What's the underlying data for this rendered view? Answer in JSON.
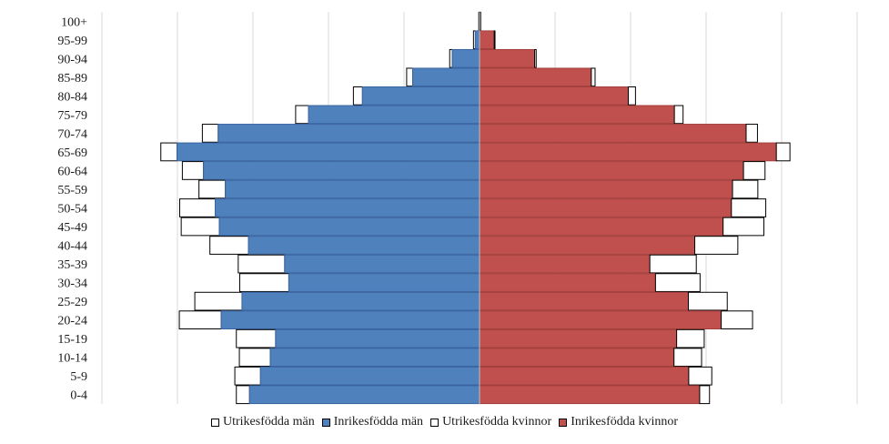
{
  "chart_data": {
    "type": "bar",
    "orientation": "horizontal",
    "subtype": "population-pyramid",
    "categories": [
      "100+",
      "95-99",
      "90-94",
      "85-89",
      "80-84",
      "75-79",
      "70-74",
      "65-69",
      "60-64",
      "55-59",
      "50-54",
      "45-49",
      "40-44",
      "35-39",
      "30-34",
      "25-29",
      "20-24",
      "15-19",
      "10-14",
      "5-9",
      "0-4"
    ],
    "xlim": [
      -100,
      100
    ],
    "grid": true,
    "legend_position": "bottom",
    "series": [
      {
        "name": "Utrikesfödda män",
        "side": "left",
        "stack": "outer",
        "color": "#ffffff",
        "values": [
          0.2,
          0.5,
          0.7,
          1.6,
          2.4,
          3.4,
          4.2,
          4.3,
          5.6,
          7.0,
          9.4,
          10.1,
          10.2,
          12.3,
          13.0,
          12.5,
          11.1,
          10.4,
          8.2,
          6.8,
          3.5
        ]
      },
      {
        "name": "Inrikesfödda män",
        "side": "left",
        "stack": "inner",
        "color": "#4f81bd",
        "values": [
          0.0,
          1.1,
          7.2,
          17.7,
          31.0,
          45.3,
          69.2,
          80.1,
          73.1,
          67.3,
          70.0,
          68.9,
          61.2,
          51.6,
          50.5,
          62.9,
          68.4,
          54.0,
          55.4,
          58.0,
          60.9
        ]
      },
      {
        "name": "Utrikesfödda kvinnor",
        "side": "right",
        "stack": "outer",
        "color": "#ffffff",
        "values": [
          0.3,
          0.2,
          0.4,
          1.0,
          1.9,
          2.3,
          3.0,
          3.6,
          5.7,
          6.7,
          9.1,
          10.8,
          11.4,
          12.3,
          11.8,
          10.3,
          8.3,
          7.3,
          7.3,
          6.1,
          2.6
        ]
      },
      {
        "name": "Inrikesfödda kvinnor",
        "side": "right",
        "stack": "inner",
        "color": "#c0504d",
        "values": [
          0.0,
          3.9,
          14.6,
          29.6,
          39.4,
          51.6,
          70.6,
          78.6,
          69.9,
          67.0,
          66.7,
          64.5,
          57.0,
          45.1,
          46.6,
          55.3,
          64.0,
          52.2,
          51.5,
          55.4,
          58.3
        ]
      }
    ]
  },
  "legend": {
    "items": [
      {
        "label": "Utrikesfödda män",
        "color": "#ffffff"
      },
      {
        "label": "Inrikesfödda män",
        "color": "#4f81bd"
      },
      {
        "label": "Utrikesfödda kvinnor",
        "color": "#ffffff"
      },
      {
        "label": "Inrikesfödda kvinnor",
        "color": "#c0504d"
      }
    ]
  }
}
